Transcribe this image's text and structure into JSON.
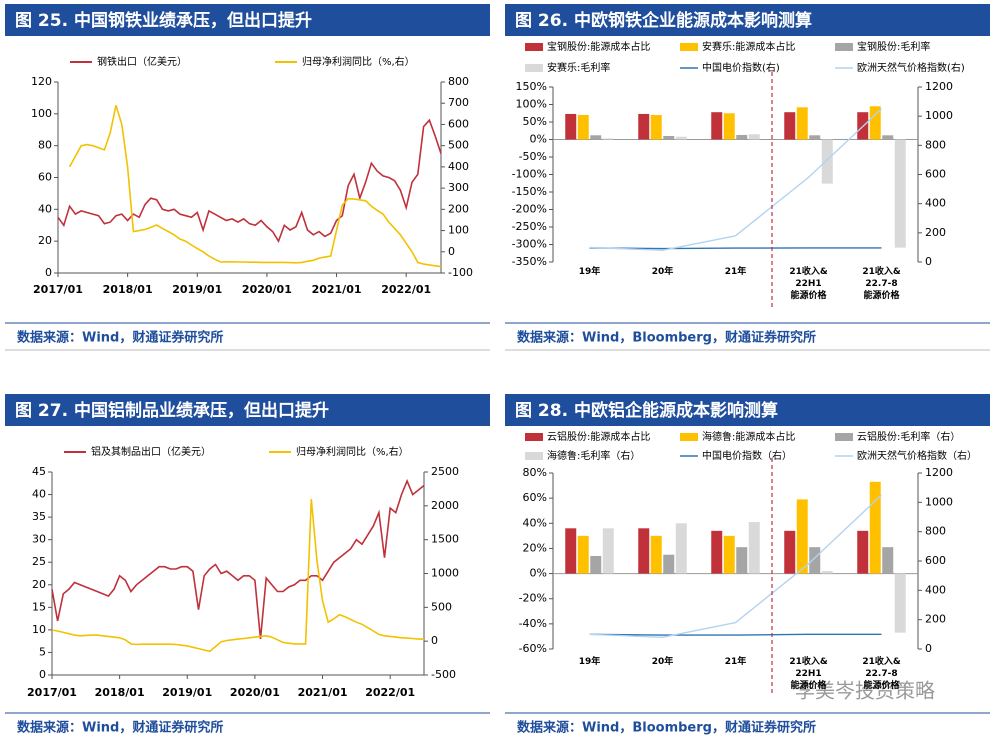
{
  "chart_data": [
    {
      "type": "line",
      "title": "图 25. 中国钢铁业绩承压，但出口提升",
      "source": "数据来源：Wind，财通证券研究所",
      "legend": "top",
      "categories": [
        "2017/01",
        null,
        null,
        null,
        null,
        null,
        null,
        null,
        null,
        null,
        null,
        null,
        "2018/01",
        null,
        null,
        null,
        null,
        null,
        null,
        null,
        null,
        null,
        null,
        null,
        "2019/01",
        null,
        null,
        null,
        null,
        null,
        null,
        null,
        null,
        null,
        null,
        null,
        "2020/01",
        null,
        null,
        null,
        null,
        null,
        null,
        null,
        null,
        null,
        null,
        null,
        "2021/01",
        null,
        null,
        null,
        null,
        null,
        null,
        null,
        null,
        null,
        null,
        null,
        "2022/01",
        null,
        null,
        null,
        null,
        null,
        null
      ],
      "series": [
        {
          "name": "钢铁出口（亿美元）",
          "color": "#c0313a",
          "values": [
            35,
            30,
            42,
            37,
            39,
            38,
            37,
            36,
            31,
            32,
            36,
            37,
            33,
            37,
            35,
            43,
            47,
            46,
            40,
            39,
            40,
            37,
            36,
            35,
            38,
            27,
            39,
            37,
            35,
            33,
            34,
            32,
            34,
            31,
            30,
            33,
            29,
            26,
            20,
            30,
            27,
            29,
            38,
            27,
            24,
            26,
            23,
            25,
            33,
            36,
            55,
            62,
            47,
            57,
            69,
            64,
            61,
            60,
            58,
            52,
            41,
            57,
            62,
            92,
            96,
            86,
            75
          ]
        },
        {
          "name": "归母净利润同比（%,右）",
          "color": "#f2c200",
          "axis": "y2",
          "values": [
            null,
            null,
            400,
            450,
            500,
            505,
            500,
            490,
            480,
            560,
            690,
            600,
            400,
            95,
            100,
            105,
            115,
            126,
            110,
            95,
            80,
            60,
            50,
            32,
            15,
            0,
            -20,
            -35,
            -48,
            -47,
            -47,
            -48,
            -48,
            -49,
            -49,
            -50,
            -50,
            -50,
            -50,
            -50,
            -51,
            -52,
            -50,
            -45,
            -40,
            -30,
            -25,
            -20,
            100,
            220,
            250,
            248,
            245,
            240,
            215,
            195,
            178,
            140,
            110,
            80,
            40,
            0,
            -50,
            -58,
            -62,
            -66,
            -70
          ]
        }
      ],
      "ylim": [
        0,
        120
      ],
      "yticks": [
        0,
        20,
        40,
        60,
        80,
        100,
        120
      ],
      "y2lim": [
        -100,
        800
      ],
      "y2ticks": [
        -100,
        0,
        100,
        200,
        300,
        400,
        500,
        600,
        700,
        800
      ]
    },
    {
      "type": "bar",
      "title": "图 26. 中欧钢铁企业能源成本影响测算",
      "source": "数据来源：Wind，Bloomberg，财通证券研究所",
      "legend": "top",
      "categories": [
        "19年",
        "20年",
        "21年",
        "21收入&\n22H1\n能源价格",
        "21收入&\n22.7-8\n能源价格"
      ],
      "series": [
        {
          "name": "宝钢股份:能源成本占比",
          "color": "#c0313a",
          "values": [
            73,
            73,
            78,
            78,
            78
          ]
        },
        {
          "name": "安赛乐:能源成本占比",
          "color": "#ffc000",
          "values": [
            70,
            70,
            75,
            92,
            95
          ]
        },
        {
          "name": "宝钢股份:毛利率",
          "color": "#a5a5a5",
          "values": [
            12,
            10,
            13,
            12,
            12
          ]
        },
        {
          "name": "安赛乐:毛利率",
          "color": "#d9d9d9",
          "values": [
            3,
            8,
            15,
            -126,
            -309
          ]
        },
        {
          "name": "中国电价指数(右)",
          "color": "#2e75b6",
          "type": "line",
          "axis": "y2",
          "values": [
            97,
            92,
            95,
            97,
            97
          ]
        },
        {
          "name": "欧洲天然气价格指数(右)",
          "color": "#b4d3f0",
          "type": "line",
          "axis": "y2",
          "values": [
            100,
            80,
            180,
            580,
            1050
          ]
        }
      ],
      "ylim": [
        -350,
        150
      ],
      "yticks": [
        {
          "value": -350,
          "label": "-350%"
        },
        {
          "value": -300,
          "label": "-300%"
        },
        {
          "value": -250,
          "label": "-250%"
        },
        {
          "value": -200,
          "label": "-200%"
        },
        {
          "value": -150,
          "label": "-150%"
        },
        {
          "value": -100,
          "label": "-100%"
        },
        {
          "value": -50,
          "label": "-50%"
        },
        {
          "value": 0,
          "label": "0%"
        },
        {
          "value": 50,
          "label": "50%"
        },
        {
          "value": 100,
          "label": "100%"
        },
        {
          "value": 150,
          "label": "150%"
        }
      ],
      "y2lim": [
        0,
        1200
      ],
      "y2ticks": [
        0,
        200,
        400,
        600,
        800,
        1000,
        1200
      ]
    },
    {
      "type": "line",
      "title": "图 27. 中国铝制品业绩承压，但出口提升",
      "source": "数据来源：Wind，财通证券研究所",
      "legend": "top",
      "categories": [
        "2017/01",
        null,
        null,
        null,
        null,
        null,
        null,
        null,
        null,
        null,
        null,
        null,
        "2018/01",
        null,
        null,
        null,
        null,
        null,
        null,
        null,
        null,
        null,
        null,
        null,
        "2019/01",
        null,
        null,
        null,
        null,
        null,
        null,
        null,
        null,
        null,
        null,
        null,
        "2020/01",
        null,
        null,
        null,
        null,
        null,
        null,
        null,
        null,
        null,
        null,
        null,
        "2021/01",
        null,
        null,
        null,
        null,
        null,
        null,
        null,
        null,
        null,
        null,
        null,
        "2022/01",
        null,
        null,
        null,
        null,
        null,
        null
      ],
      "series": [
        {
          "name": "铝及其制品出口（亿美元）",
          "color": "#c0313a",
          "values": [
            19,
            12,
            18,
            19,
            20.5,
            20,
            19.5,
            19,
            18.5,
            18,
            17.5,
            19,
            22,
            21,
            18.5,
            20,
            21,
            22,
            23,
            24,
            24,
            23.5,
            23.5,
            24,
            24,
            23,
            14.5,
            22,
            23.5,
            24.5,
            22.5,
            23,
            22,
            21,
            22,
            22,
            21,
            8,
            21.5,
            20,
            18.5,
            18.5,
            19.5,
            20,
            21,
            21,
            22,
            22,
            21,
            23,
            25,
            26,
            27,
            28,
            30,
            29,
            31,
            33,
            36,
            26,
            37,
            36,
            40,
            43,
            40,
            41,
            42
          ]
        },
        {
          "name": "归母净利润同比（%,右）",
          "color": "#f2c200",
          "axis": "y2",
          "values": [
            165,
            150,
            130,
            110,
            90,
            80,
            85,
            90,
            90,
            80,
            70,
            60,
            50,
            20,
            -40,
            -50,
            -45,
            -45,
            -45,
            -45,
            -45,
            -45,
            -50,
            -60,
            -70,
            -90,
            -110,
            -130,
            -150,
            -80,
            -10,
            10,
            20,
            30,
            40,
            50,
            60,
            70,
            80,
            60,
            20,
            -20,
            -30,
            -40,
            -40,
            -40,
            2100,
            1200,
            600,
            280,
            330,
            390,
            360,
            320,
            280,
            250,
            200,
            150,
            100,
            80,
            70,
            60,
            50,
            45,
            40,
            30,
            30
          ]
        }
      ],
      "ylim": [
        0,
        45
      ],
      "yticks": [
        0,
        5,
        10,
        15,
        20,
        25,
        30,
        35,
        40,
        45
      ],
      "y2lim": [
        -500,
        2500
      ],
      "y2ticks": [
        -500,
        0,
        500,
        1000,
        1500,
        2000,
        2500
      ]
    },
    {
      "type": "bar",
      "title": "图 28. 中欧铝企能源成本影响测算",
      "source": "数据来源：Wind，Bloomberg，财通证券研究所",
      "legend": "top",
      "categories": [
        "19年",
        "20年",
        "21年",
        "21收入&\n22H1\n能源价格",
        "21收入&\n22.7-8\n能源价格"
      ],
      "series": [
        {
          "name": "云铝股份:能源成本占比",
          "color": "#c0313a",
          "values": [
            36,
            36,
            34,
            34,
            34
          ]
        },
        {
          "name": "海德鲁:能源成本占比",
          "color": "#ffc000",
          "values": [
            30,
            30,
            30,
            59,
            73
          ]
        },
        {
          "name": "云铝股份:毛利率（右）",
          "color": "#a5a5a5",
          "values": [
            14,
            15,
            21,
            21,
            21
          ]
        },
        {
          "name": "海德鲁:毛利率（右）",
          "color": "#d9d9d9",
          "values": [
            36,
            40,
            41,
            2,
            -47
          ]
        },
        {
          "name": "中国电价指数（右）",
          "color": "#2e75b6",
          "type": "line",
          "axis": "y2",
          "values": [
            100,
            95,
            95,
            100,
            100
          ]
        },
        {
          "name": "欧洲天然气价格指数（右）",
          "color": "#b4d3f0",
          "type": "line",
          "axis": "y2",
          "values": [
            100,
            80,
            180,
            580,
            1050
          ]
        }
      ],
      "ylim": [
        -60,
        80
      ],
      "yticks": [
        {
          "value": -60,
          "label": "-60%"
        },
        {
          "value": -40,
          "label": "-40%"
        },
        {
          "value": -20,
          "label": "-20%"
        },
        {
          "value": 0,
          "label": "0%"
        },
        {
          "value": 20,
          "label": "20%"
        },
        {
          "value": 40,
          "label": "40%"
        },
        {
          "value": 60,
          "label": "60%"
        },
        {
          "value": 80,
          "label": "80%"
        }
      ],
      "y2lim": [
        0,
        1200
      ],
      "y2ticks": [
        0,
        200,
        400,
        600,
        800,
        1000,
        1200
      ]
    }
  ],
  "watermark": "李美岑投资策略"
}
